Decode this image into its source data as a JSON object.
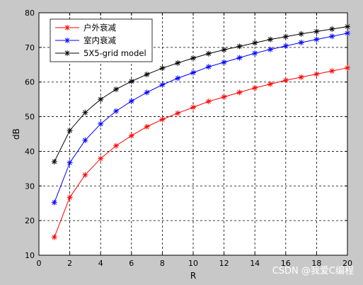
{
  "chart_data": {
    "type": "line",
    "xlabel": "R",
    "ylabel": "dB",
    "xlim": [
      0,
      20
    ],
    "ylim": [
      10,
      80
    ],
    "xticks": [
      0,
      2,
      4,
      6,
      8,
      10,
      12,
      14,
      16,
      18,
      20
    ],
    "yticks": [
      10,
      20,
      30,
      40,
      50,
      60,
      70,
      80
    ],
    "grid": true,
    "legend_position": "top-left",
    "x": [
      1,
      2,
      3,
      4,
      5,
      6,
      7,
      8,
      9,
      10,
      11,
      12,
      13,
      14,
      15,
      16,
      17,
      18,
      19,
      20
    ],
    "series": [
      {
        "name": "户外衰减",
        "color": "#ff0000",
        "marker": "asterisk",
        "values": [
          15.2,
          26.7,
          33.2,
          37.9,
          41.6,
          44.5,
          47.1,
          49.2,
          51.0,
          52.7,
          54.4,
          55.7,
          57.0,
          58.3,
          59.4,
          60.5,
          61.4,
          62.3,
          63.2,
          64.1
        ]
      },
      {
        "name": "室内衰减",
        "color": "#0000ff",
        "marker": "asterisk",
        "values": [
          25.2,
          36.7,
          43.2,
          47.9,
          51.6,
          54.5,
          57.0,
          59.2,
          61.1,
          62.7,
          64.4,
          65.7,
          67.0,
          68.3,
          69.4,
          70.4,
          71.4,
          72.3,
          73.2,
          74.1
        ]
      },
      {
        "name": "5X5-grid model",
        "color": "#000000",
        "marker": "asterisk",
        "values": [
          37.0,
          46.0,
          51.2,
          55.0,
          57.9,
          60.2,
          62.2,
          64.0,
          65.5,
          66.9,
          68.2,
          69.3,
          70.3,
          71.3,
          72.3,
          73.1,
          73.9,
          74.6,
          75.3,
          76.0
        ]
      }
    ]
  },
  "watermark": "CSDN @我爱C编程"
}
